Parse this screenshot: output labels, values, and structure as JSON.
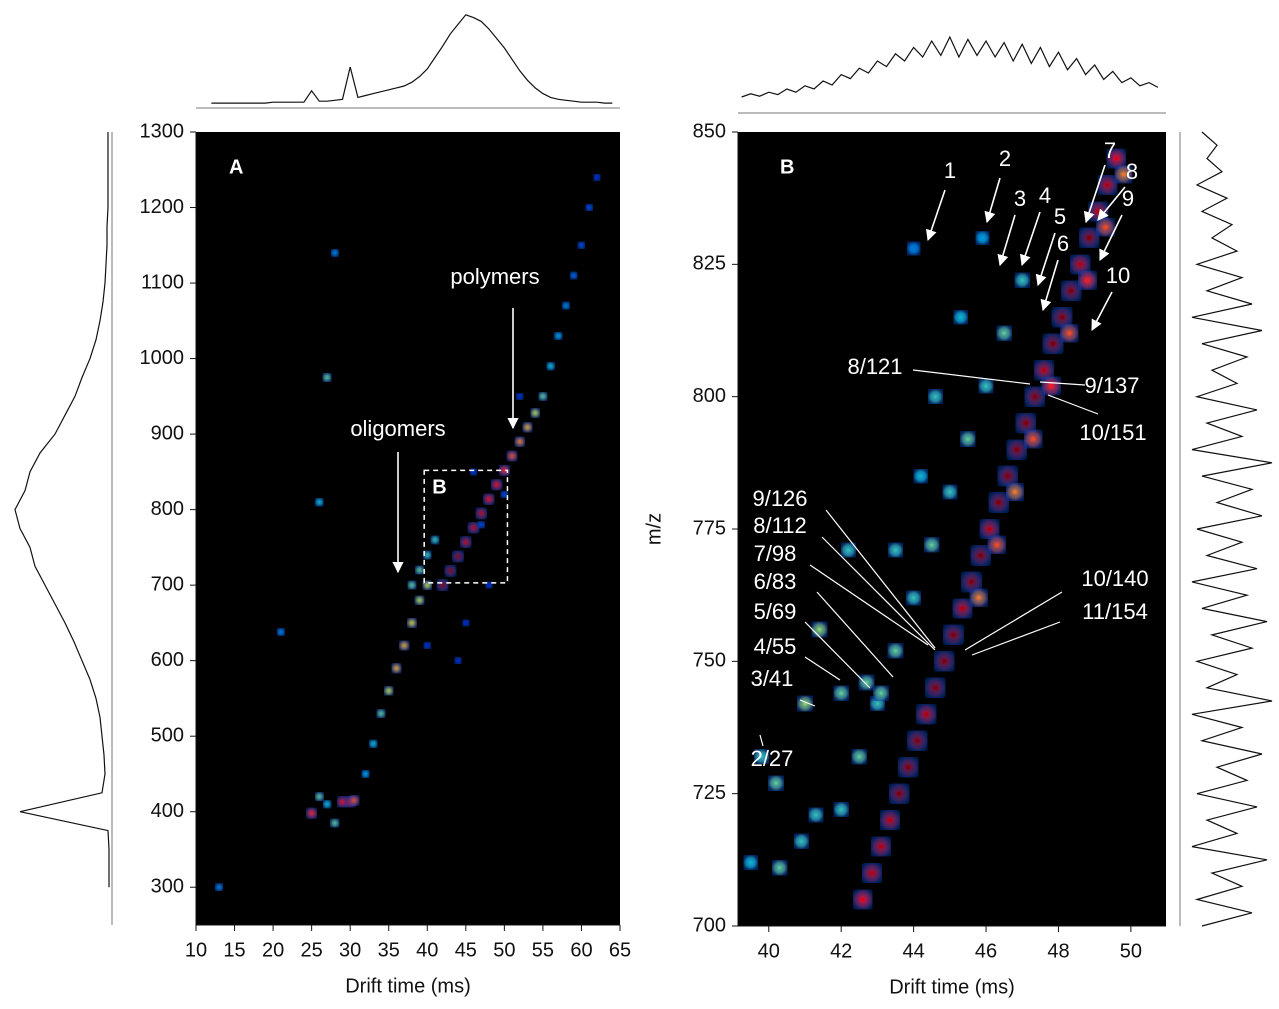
{
  "chart_data": [
    {
      "type": "scatter",
      "panel_label": "A",
      "xlabel": "Drift time (ms)",
      "background": "#000000",
      "xlim": [
        10,
        65
      ],
      "ylim": [
        250,
        1300
      ],
      "xticks": [
        10,
        15,
        20,
        25,
        30,
        35,
        40,
        45,
        50,
        55,
        60,
        65
      ],
      "yticks": [
        300,
        400,
        500,
        600,
        700,
        800,
        900,
        1000,
        1100,
        1200,
        1300
      ],
      "x": [
        42,
        43,
        44,
        45,
        46,
        47,
        48,
        49,
        50,
        51,
        52,
        53,
        54,
        55,
        56,
        57,
        58,
        59,
        60,
        61,
        62,
        25,
        26,
        27,
        29,
        30,
        30.5,
        28,
        32,
        33,
        34,
        35,
        36,
        37,
        38,
        39,
        40,
        38,
        39,
        40,
        41,
        27,
        26,
        21,
        13,
        28,
        45,
        50,
        47,
        52,
        44,
        48,
        40,
        46
      ],
      "y": [
        700,
        719,
        738,
        757,
        776,
        795,
        814,
        833,
        852,
        871,
        890,
        909,
        928,
        950,
        990,
        1030,
        1070,
        1110,
        1150,
        1200,
        1240,
        398,
        420,
        410,
        413,
        413,
        415,
        385,
        450,
        490,
        530,
        560,
        590,
        620,
        650,
        680,
        700,
        700,
        720,
        740,
        760,
        975,
        810,
        638,
        300,
        1140,
        650,
        820,
        780,
        950,
        600,
        700,
        620,
        850
      ],
      "intensity": [
        1.0,
        1.0,
        1.0,
        0.95,
        0.95,
        0.95,
        0.9,
        0.9,
        0.85,
        0.8,
        0.75,
        0.7,
        0.6,
        0.5,
        0.4,
        0.35,
        0.3,
        0.25,
        0.2,
        0.2,
        0.15,
        0.85,
        0.5,
        0.4,
        0.9,
        0.9,
        0.8,
        0.5,
        0.35,
        0.4,
        0.5,
        0.6,
        0.7,
        0.7,
        0.65,
        0.6,
        0.6,
        0.5,
        0.5,
        0.45,
        0.45,
        0.5,
        0.4,
        0.3,
        0.3,
        0.3,
        0.15,
        0.2,
        0.2,
        0.15,
        0.15,
        0.15,
        0.15,
        0.15
      ],
      "top_profile": {
        "x": [
          12,
          13,
          14,
          15,
          16,
          17,
          18,
          19,
          20,
          21,
          22,
          23,
          24,
          25,
          26,
          27,
          28,
          29,
          30,
          31,
          32,
          33,
          34,
          35,
          36,
          37,
          38,
          39,
          40,
          41,
          42,
          43,
          44,
          45,
          46,
          47,
          48,
          49,
          50,
          51,
          52,
          53,
          54,
          55,
          56,
          57,
          58,
          59,
          60,
          61,
          62,
          63,
          64
        ],
        "values": [
          2,
          2,
          2,
          2,
          2,
          2,
          2,
          2,
          3,
          3,
          3,
          3,
          3,
          15,
          4,
          4,
          5,
          6,
          40,
          8,
          10,
          12,
          14,
          16,
          18,
          20,
          24,
          30,
          38,
          50,
          62,
          75,
          85,
          95,
          92,
          88,
          80,
          70,
          60,
          48,
          36,
          26,
          18,
          12,
          8,
          6,
          5,
          4,
          3,
          3,
          3,
          2,
          2
        ]
      },
      "side_profile": {
        "y": [
          300,
          325,
          350,
          375,
          400,
          425,
          450,
          475,
          500,
          525,
          550,
          575,
          600,
          625,
          650,
          675,
          700,
          725,
          750,
          775,
          800,
          825,
          850,
          875,
          900,
          925,
          950,
          975,
          1000,
          1025,
          1050,
          1075,
          1100,
          1125,
          1150,
          1175,
          1200,
          1225,
          1250,
          1275,
          1300
        ],
        "values": [
          1,
          1,
          1,
          2,
          90,
          8,
          5,
          6,
          8,
          10,
          14,
          20,
          28,
          36,
          45,
          55,
          65,
          75,
          80,
          90,
          95,
          85,
          80,
          70,
          55,
          45,
          35,
          28,
          20,
          14,
          10,
          7,
          5,
          4,
          3,
          3,
          2,
          2,
          2,
          2,
          2
        ]
      },
      "inset": {
        "label": "B",
        "xlim": [
          39.6,
          50.4
        ],
        "ylim": [
          703,
          852
        ]
      },
      "annotations": [
        {
          "text": "polymers"
        },
        {
          "text": "oligomers"
        }
      ]
    },
    {
      "type": "scatter",
      "panel_label": "B",
      "xlabel": "Drift time (ms)",
      "ylabel": "m/z",
      "background": "#000000",
      "xlim": [
        39.15,
        50.97
      ],
      "ylim": [
        700,
        850
      ],
      "xticks": [
        40,
        42,
        44,
        46,
        48,
        50
      ],
      "yticks": [
        700,
        725,
        750,
        775,
        800,
        825,
        850
      ],
      "x": [
        42.6,
        42.85,
        43.1,
        43.35,
        43.6,
        43.85,
        44.1,
        44.35,
        44.6,
        44.85,
        45.1,
        45.35,
        45.6,
        45.85,
        46.1,
        46.35,
        46.6,
        46.85,
        47.1,
        47.35,
        47.6,
        47.85,
        48.1,
        48.35,
        48.6,
        48.85,
        49.1,
        49.35,
        49.6,
        45.8,
        46.3,
        46.8,
        47.3,
        47.8,
        48.3,
        48.8,
        49.3,
        49.8,
        42.0,
        42.5,
        43.0,
        43.5,
        44.0,
        44.5,
        45.0,
        45.5,
        46.0,
        46.5,
        47.0,
        39.5,
        39.8,
        40.3,
        40.2,
        40.9,
        41.0,
        41.3,
        41.4,
        42.0,
        42.7,
        43.1,
        42.2,
        43.5,
        44.2,
        44.6,
        45.3,
        45.9,
        44.0
      ],
      "y": [
        705,
        710,
        715,
        720,
        725,
        730,
        735,
        740,
        745,
        750,
        755,
        760,
        765,
        770,
        775,
        780,
        785,
        790,
        795,
        800,
        805,
        810,
        815,
        820,
        825,
        830,
        835,
        840,
        845,
        762,
        772,
        782,
        792,
        802,
        812,
        822,
        832,
        842,
        722,
        732,
        742,
        752,
        762,
        772,
        782,
        792,
        802,
        812,
        822,
        712,
        732,
        711,
        727,
        716,
        742,
        721,
        756,
        744,
        746,
        744,
        771,
        771,
        785,
        800,
        815,
        830,
        828
      ],
      "intensity": [
        0.9,
        0.95,
        0.95,
        0.95,
        1.0,
        1.0,
        1.0,
        0.95,
        1.0,
        1.0,
        1.0,
        0.95,
        1.0,
        1.0,
        0.95,
        1.0,
        1.0,
        1.0,
        1.0,
        1.0,
        0.95,
        1.0,
        1.0,
        1.0,
        0.95,
        1.0,
        0.95,
        0.95,
        0.9,
        0.75,
        0.8,
        0.75,
        0.8,
        0.85,
        0.8,
        0.85,
        0.8,
        0.75,
        0.45,
        0.5,
        0.45,
        0.5,
        0.45,
        0.5,
        0.45,
        0.5,
        0.45,
        0.5,
        0.45,
        0.4,
        0.45,
        0.5,
        0.5,
        0.45,
        0.55,
        0.45,
        0.55,
        0.5,
        0.5,
        0.5,
        0.45,
        0.45,
        0.4,
        0.45,
        0.4,
        0.35,
        0.3
      ],
      "top_profile": {
        "x": [
          39.25,
          39.5,
          39.75,
          40,
          40.25,
          40.5,
          40.75,
          41,
          41.25,
          41.5,
          41.75,
          42,
          42.25,
          42.5,
          42.75,
          43,
          43.25,
          43.5,
          43.75,
          44,
          44.25,
          44.5,
          44.75,
          45,
          45.25,
          45.5,
          45.75,
          46,
          46.25,
          46.5,
          46.75,
          47,
          47.25,
          47.5,
          47.75,
          48,
          48.25,
          48.5,
          48.75,
          49,
          49.25,
          49.5,
          49.75,
          50,
          50.25,
          50.5,
          50.75
        ],
        "values": [
          10,
          14,
          11,
          16,
          13,
          20,
          16,
          24,
          20,
          30,
          25,
          38,
          33,
          46,
          40,
          55,
          48,
          64,
          55,
          72,
          60,
          80,
          62,
          85,
          60,
          82,
          62,
          80,
          60,
          78,
          55,
          76,
          52,
          72,
          48,
          66,
          44,
          58,
          38,
          50,
          32,
          42,
          28,
          34,
          24,
          28,
          22
        ]
      },
      "side_profile": {
        "y": [
          700,
          702.5,
          705,
          707.5,
          710,
          712.5,
          715,
          717.5,
          720,
          722.5,
          725,
          727.5,
          730,
          732.5,
          735,
          737.5,
          740,
          742.5,
          745,
          747.5,
          750,
          752.5,
          755,
          757.5,
          760,
          762.5,
          765,
          767.5,
          770,
          772.5,
          775,
          777.5,
          780,
          782.5,
          785,
          787.5,
          790,
          792.5,
          795,
          797.5,
          800,
          802.5,
          805,
          807.5,
          810,
          812.5,
          815,
          817.5,
          820,
          822.5,
          825,
          827.5,
          830,
          832.5,
          835,
          837.5,
          840,
          842.5,
          845,
          847.5,
          850
        ],
        "values": [
          20,
          70,
          15,
          60,
          30,
          85,
          10,
          55,
          25,
          75,
          15,
          65,
          35,
          80,
          20,
          60,
          10,
          90,
          25,
          55,
          15,
          70,
          30,
          85,
          20,
          65,
          10,
          75,
          25,
          60,
          15,
          80,
          35,
          70,
          20,
          90,
          10,
          60,
          25,
          75,
          15,
          55,
          30,
          65,
          20,
          80,
          10,
          70,
          25,
          60,
          15,
          55,
          30,
          50,
          20,
          45,
          15,
          40,
          25,
          35,
          20
        ]
      },
      "annotations": [
        {
          "text": "1"
        },
        {
          "text": "2"
        },
        {
          "text": "3"
        },
        {
          "text": "4"
        },
        {
          "text": "5"
        },
        {
          "text": "6"
        },
        {
          "text": "7"
        },
        {
          "text": "8"
        },
        {
          "text": "9"
        },
        {
          "text": "10"
        },
        {
          "text": "8/121"
        },
        {
          "text": "9/137"
        },
        {
          "text": "10/151"
        },
        {
          "text": "9/126"
        },
        {
          "text": "8/112"
        },
        {
          "text": "7/98"
        },
        {
          "text": "6/83"
        },
        {
          "text": "5/69"
        },
        {
          "text": "4/55"
        },
        {
          "text": "3/41"
        },
        {
          "text": "2/27"
        },
        {
          "text": "10/140"
        },
        {
          "text": "11/154"
        }
      ]
    }
  ]
}
